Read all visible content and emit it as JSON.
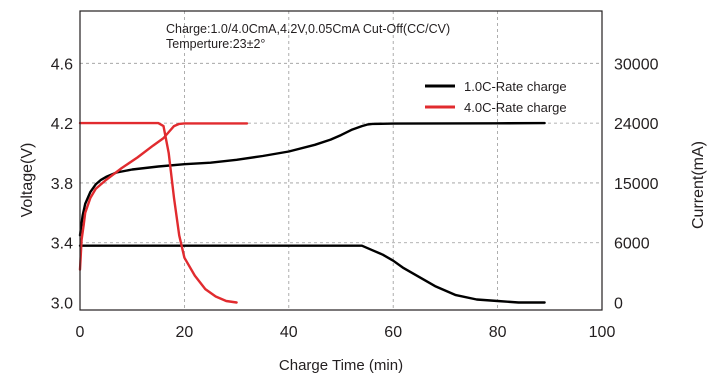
{
  "chart_data": {
    "type": "line",
    "annotations": [
      "Charge:1.0/4.0CmA,4.2V,0.05CmA Cut-Off(CC/CV)",
      "Temperture:23±2°"
    ],
    "xlabel": "Charge Time (min)",
    "ylabel_left": "Voltage(V)",
    "ylabel_right": "Current(mA)",
    "x_ticks": [
      "0",
      "20",
      "40",
      "60",
      "80",
      "100"
    ],
    "y_left_ticks": [
      "3.0",
      "3.4",
      "3.8",
      "4.2",
      "4.6"
    ],
    "y_right_ticks": [
      "0",
      "6000",
      "15000",
      "24000",
      "30000"
    ],
    "xlim": [
      0,
      100
    ],
    "y_left_lim": [
      2.95,
      4.95
    ],
    "grid": "vertical and horizontal dashed",
    "legend_position": "top-right",
    "series": [
      {
        "name": "1.0C-Rate charge",
        "color": "#000000",
        "axis": "left",
        "kind": "voltage",
        "x": [
          0,
          0.5,
          1,
          2,
          3,
          4,
          5,
          7,
          10,
          15,
          20,
          25,
          30,
          35,
          40,
          45,
          48,
          50,
          52,
          54,
          55,
          56,
          60,
          70,
          80,
          89
        ],
        "y": [
          3.45,
          3.58,
          3.66,
          3.74,
          3.79,
          3.82,
          3.84,
          3.87,
          3.89,
          3.91,
          3.925,
          3.935,
          3.955,
          3.98,
          4.01,
          4.055,
          4.09,
          4.12,
          4.155,
          4.18,
          4.19,
          4.195,
          4.197,
          4.198,
          4.199,
          4.2
        ]
      },
      {
        "name": "1.0C-Rate charge",
        "color": "#000000",
        "axis": "left",
        "kind": "current",
        "x": [
          0,
          10,
          20,
          30,
          40,
          50,
          54,
          56,
          58,
          60,
          62,
          65,
          68,
          72,
          76,
          80,
          84,
          88,
          89
        ],
        "y": [
          3.38,
          3.38,
          3.38,
          3.38,
          3.38,
          3.38,
          3.38,
          3.35,
          3.32,
          3.28,
          3.23,
          3.17,
          3.11,
          3.05,
          3.02,
          3.01,
          3.0,
          3.0,
          3.0
        ]
      },
      {
        "name": "4.0C-Rate charge",
        "color": "#e12b2f",
        "axis": "left",
        "kind": "voltage",
        "x": [
          0,
          0.3,
          0.7,
          1,
          2,
          3,
          5,
          8,
          11,
          14,
          16,
          17,
          18,
          19,
          20,
          25,
          30,
          32
        ],
        "y": [
          3.22,
          3.42,
          3.52,
          3.6,
          3.7,
          3.76,
          3.82,
          3.9,
          3.97,
          4.05,
          4.1,
          4.14,
          4.18,
          4.195,
          4.198,
          4.198,
          4.198,
          4.198
        ]
      },
      {
        "name": "4.0C-Rate charge",
        "color": "#e12b2f",
        "axis": "left",
        "kind": "current",
        "x": [
          0,
          5,
          10,
          15,
          16,
          17,
          18,
          19,
          20,
          22,
          24,
          26,
          28,
          30
        ],
        "y": [
          4.2,
          4.2,
          4.2,
          4.2,
          4.18,
          4.0,
          3.7,
          3.45,
          3.3,
          3.18,
          3.09,
          3.04,
          3.01,
          3.0
        ]
      }
    ]
  },
  "legend": {
    "item1": "1.0C-Rate charge",
    "item2": "4.0C-Rate charge"
  },
  "colors": {
    "series1": "#000000",
    "series2": "#e12b2f",
    "grid": "#9a9a9a",
    "frame": "#231f20"
  }
}
